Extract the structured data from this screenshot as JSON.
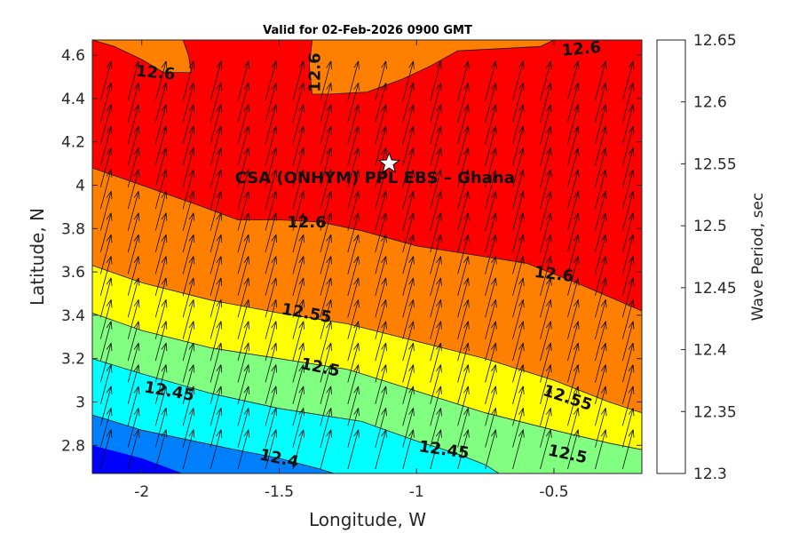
{
  "chart_data": {
    "type": "filled-contour",
    "title": "Valid for 02-Feb-2026 0900 GMT",
    "xlabel": "Longitude, W",
    "ylabel": "Latitude, N",
    "xlim": [
      -2.18,
      -0.18
    ],
    "ylim": [
      2.67,
      4.67
    ],
    "xticks": [
      -2,
      -1.5,
      -1,
      -0.5
    ],
    "xtick_labels": [
      "-2",
      "-1.5",
      "-1",
      "-0.5"
    ],
    "yticks": [
      2.8,
      3,
      3.2,
      3.4,
      3.6,
      3.8,
      4,
      4.2,
      4.4,
      4.6
    ],
    "ytick_labels": [
      "2.8",
      "3",
      "3.2",
      "3.4",
      "3.6",
      "3.8",
      "4",
      "4.2",
      "4.4",
      "4.6"
    ],
    "colorbar": {
      "label": "Wave Period, sec",
      "levels": [
        12.3,
        12.35,
        12.4,
        12.45,
        12.5,
        12.55,
        12.6,
        12.65
      ],
      "tick_labels": [
        "12.3",
        "12.35",
        "12.4",
        "12.45",
        "12.5",
        "12.55",
        "12.6",
        "12.65"
      ],
      "colors": [
        "#0000ff",
        "#0080ff",
        "#00ffff",
        "#80ff80",
        "#ffff00",
        "#ff8000",
        "#ff0000"
      ]
    },
    "contours": [
      {
        "level": 12.4,
        "points": [
          [
            -2.18,
            2.94
          ],
          [
            -2.0,
            2.87
          ],
          [
            -1.7,
            2.79
          ],
          [
            -1.5,
            2.74
          ],
          [
            -1.35,
            2.69
          ],
          [
            -1.3,
            2.67
          ]
        ]
      },
      {
        "level": 12.45,
        "points": [
          [
            -2.18,
            3.2
          ],
          [
            -2.0,
            3.13
          ],
          [
            -1.75,
            3.04
          ],
          [
            -1.5,
            2.97
          ],
          [
            -1.2,
            2.91
          ],
          [
            -1.0,
            2.82
          ],
          [
            -0.85,
            2.76
          ],
          [
            -0.75,
            2.71
          ],
          [
            -0.7,
            2.67
          ]
        ]
      },
      {
        "level": 12.5,
        "points": [
          [
            -2.18,
            3.41
          ],
          [
            -2.0,
            3.33
          ],
          [
            -1.75,
            3.25
          ],
          [
            -1.5,
            3.2
          ],
          [
            -1.25,
            3.15
          ],
          [
            -1.0,
            3.05
          ],
          [
            -0.75,
            2.95
          ],
          [
            -0.5,
            2.87
          ],
          [
            -0.3,
            2.81
          ],
          [
            -0.18,
            2.78
          ]
        ]
      },
      {
        "level": 12.55,
        "points": [
          [
            -2.18,
            3.63
          ],
          [
            -2.0,
            3.55
          ],
          [
            -1.75,
            3.47
          ],
          [
            -1.5,
            3.41
          ],
          [
            -1.25,
            3.36
          ],
          [
            -1.0,
            3.28
          ],
          [
            -0.75,
            3.2
          ],
          [
            -0.5,
            3.1
          ],
          [
            -0.3,
            3.0
          ],
          [
            -0.18,
            2.95
          ]
        ]
      },
      {
        "level": 12.6,
        "points": [
          [
            -2.18,
            4.08
          ],
          [
            -2.0,
            4.0
          ],
          [
            -1.8,
            3.91
          ],
          [
            -1.65,
            3.84
          ],
          [
            -1.5,
            3.84
          ],
          [
            -1.35,
            3.83
          ],
          [
            -1.2,
            3.79
          ],
          [
            -1.0,
            3.72
          ],
          [
            -0.8,
            3.68
          ],
          [
            -0.6,
            3.64
          ],
          [
            -0.4,
            3.54
          ],
          [
            -0.18,
            3.42
          ]
        ]
      },
      {
        "level": 12.6,
        "points": [
          [
            -1.85,
            4.67
          ],
          [
            -1.83,
            4.6
          ],
          [
            -1.82,
            4.52
          ],
          [
            -1.92,
            4.52
          ],
          [
            -2.0,
            4.58
          ],
          [
            -2.1,
            4.64
          ],
          [
            -2.18,
            4.67
          ]
        ]
      },
      {
        "level": 12.6,
        "points": [
          [
            -1.38,
            4.67
          ],
          [
            -1.39,
            4.55
          ],
          [
            -1.38,
            4.42
          ],
          [
            -1.32,
            4.42
          ],
          [
            -1.18,
            4.43
          ],
          [
            -1.05,
            4.49
          ],
          [
            -0.95,
            4.55
          ],
          [
            -0.85,
            4.62
          ],
          [
            -0.7,
            4.63
          ],
          [
            -0.55,
            4.64
          ],
          [
            -0.5,
            4.67
          ]
        ]
      }
    ],
    "contour_labels": [
      {
        "text": "12.6",
        "x": -1.95,
        "y": 4.52,
        "angle": 5
      },
      {
        "text": "12.6",
        "x": -1.37,
        "y": 4.52,
        "angle": -90
      },
      {
        "text": "12.6",
        "x": -0.4,
        "y": 4.63,
        "angle": -5
      },
      {
        "text": "12.6",
        "x": -1.4,
        "y": 3.83,
        "angle": 0
      },
      {
        "text": "12.6",
        "x": -0.5,
        "y": 3.59,
        "angle": 7
      },
      {
        "text": "12.55",
        "x": -1.4,
        "y": 3.41,
        "angle": 10
      },
      {
        "text": "12.55",
        "x": -0.45,
        "y": 3.02,
        "angle": 18
      },
      {
        "text": "12.5",
        "x": -1.35,
        "y": 3.16,
        "angle": 12
      },
      {
        "text": "12.5",
        "x": -0.45,
        "y": 2.76,
        "angle": 12
      },
      {
        "text": "12.45",
        "x": -1.9,
        "y": 3.05,
        "angle": 10
      },
      {
        "text": "12.45",
        "x": -0.9,
        "y": 2.78,
        "angle": 8
      },
      {
        "text": "12.4",
        "x": -1.5,
        "y": 2.74,
        "angle": 12
      }
    ],
    "wind_field": {
      "direction_deg": 15,
      "grid_spacing_lon": 0.1,
      "grid_spacing_lat": 0.1
    },
    "site": {
      "name": "CSA (ONHYM) PPL EBS  – Ghana",
      "lon": -1.1,
      "lat": 4.1,
      "marker": "star"
    }
  }
}
